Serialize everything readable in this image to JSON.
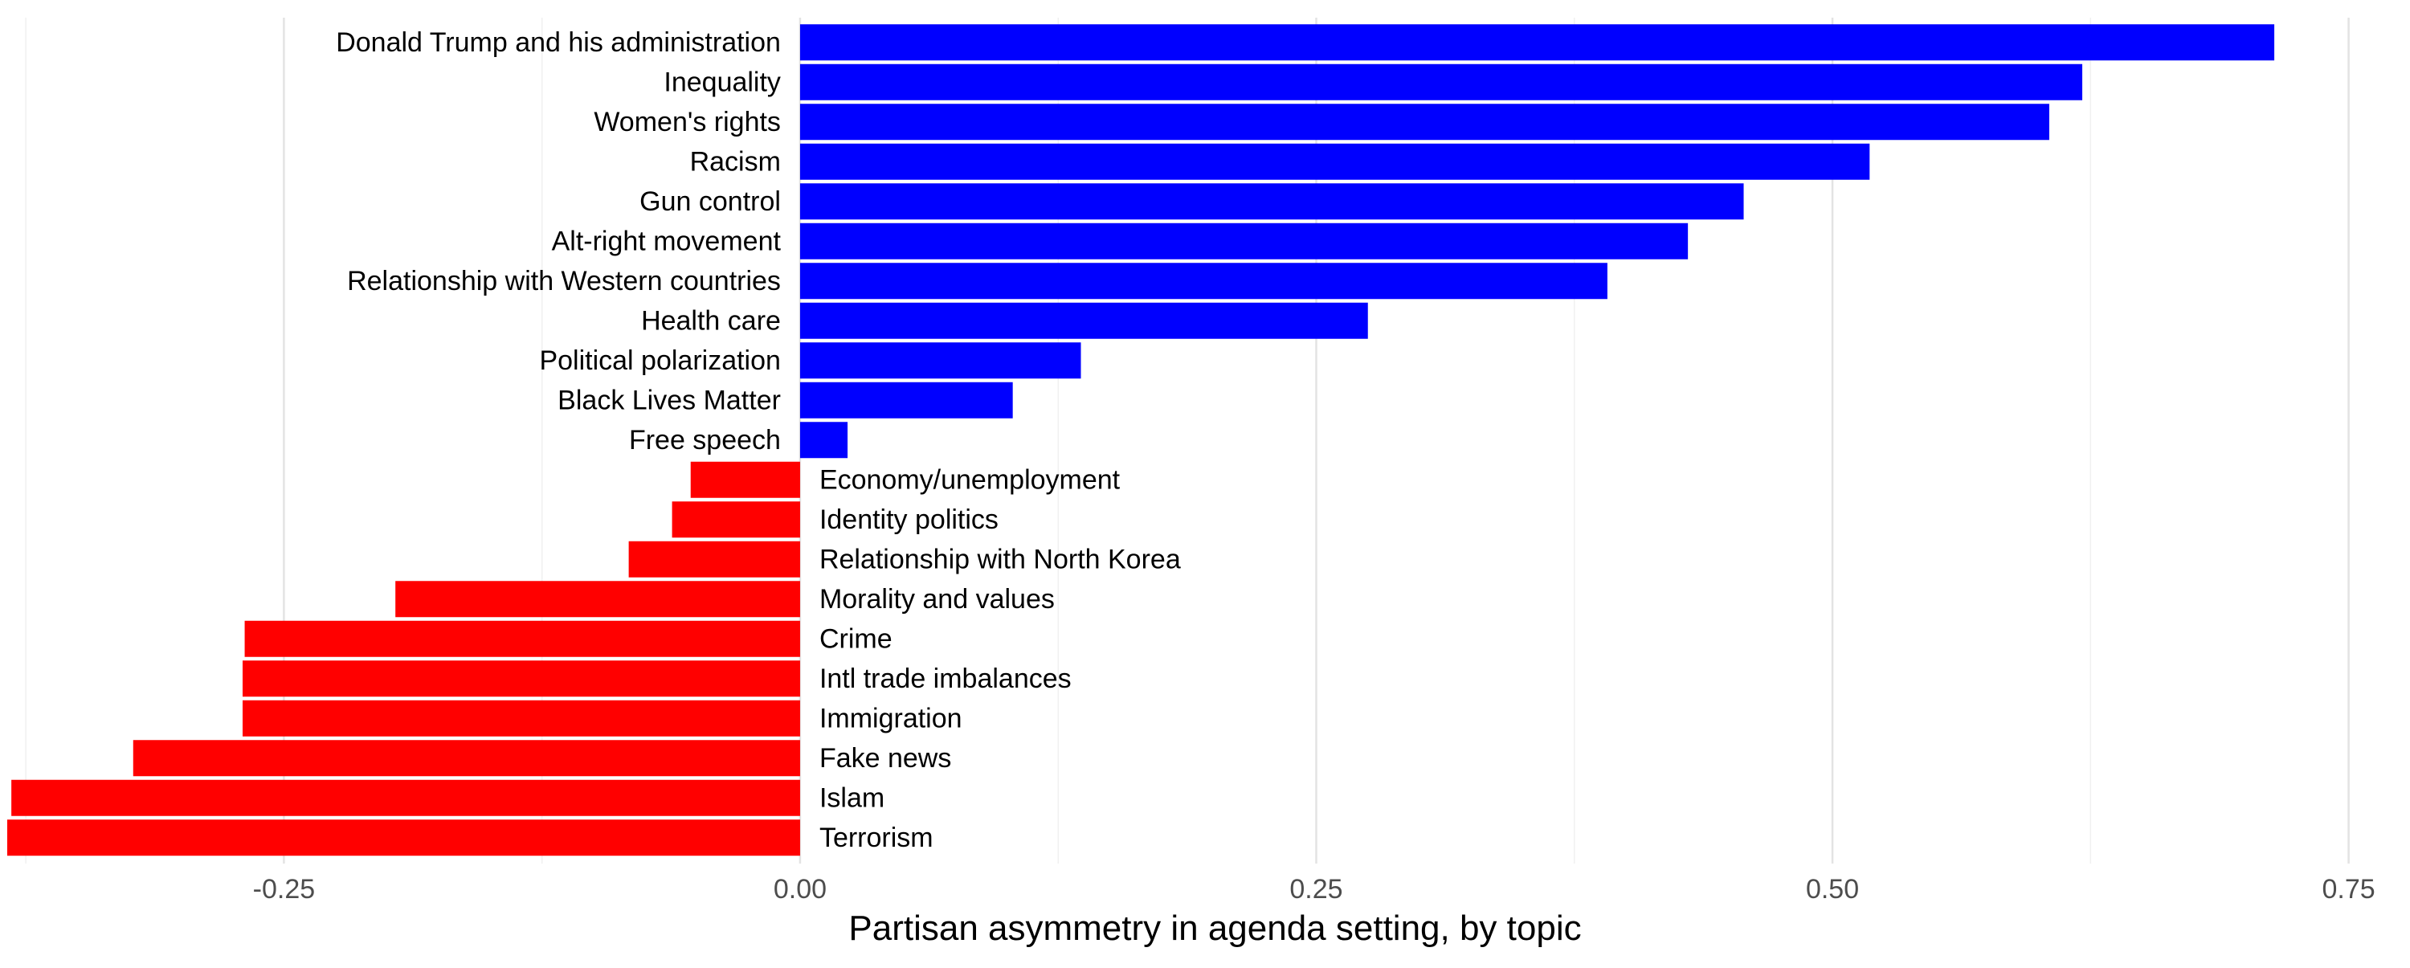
{
  "chart_data": {
    "type": "bar",
    "orientation": "horizontal",
    "xlabel": "Partisan asymmetry in agenda setting, by topic",
    "ylabel": "",
    "title": "",
    "xlim": [
      -0.3875,
      0.77
    ],
    "x_ticks": [
      -0.25,
      0.0,
      0.25,
      0.5,
      0.75
    ],
    "x_tick_labels": [
      "-0.25",
      "0.00",
      "0.25",
      "0.50",
      "0.75"
    ],
    "grid": "vertical major and minor gridlines",
    "legend": "none",
    "colors": {
      "positive": "#0000ff",
      "negative": "#ff0000"
    },
    "categories": [
      "Donald Trump and his administration",
      "Inequality",
      "Women's rights",
      "Racism",
      "Gun control",
      "Alt-right movement",
      "Relationship with Western countries",
      "Health care",
      "Political polarization",
      "Black Lives Matter",
      "Free speech",
      "Economy/unemployment",
      "Identity politics",
      "Relationship with North Korea",
      "Morality and values",
      "Crime",
      "Intl trade imbalances",
      "Immigration",
      "Fake news",
      "Islam",
      "Terrorism"
    ],
    "values": [
      0.714,
      0.621,
      0.605,
      0.518,
      0.457,
      0.43,
      0.391,
      0.275,
      0.136,
      0.103,
      0.023,
      -0.053,
      -0.062,
      -0.083,
      -0.196,
      -0.269,
      -0.27,
      -0.27,
      -0.323,
      -0.382,
      -0.384
    ]
  }
}
